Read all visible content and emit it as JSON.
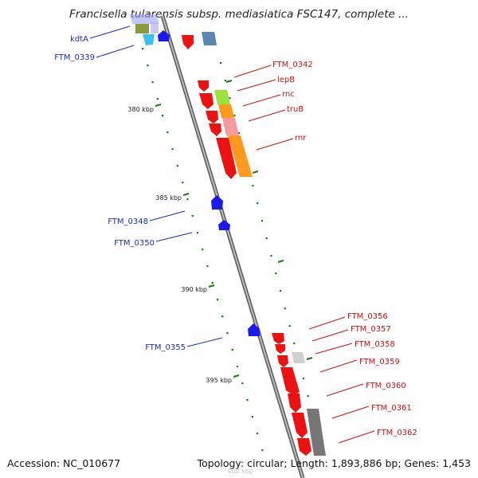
{
  "header": {
    "title": "Francisella tularensis subsp. mediasiatica FSC147, complete ..."
  },
  "footer": {
    "accession": "Accession: NC_010677",
    "topology": "Topology: circular; Length: 1,893,886 bp; Genes: 1,453"
  },
  "scale": {
    "ticks": [
      {
        "label": "380 kbp"
      },
      {
        "label": "385 kbp"
      },
      {
        "label": "390 kbp"
      },
      {
        "label": "395 kbp"
      },
      {
        "label": "400 kbp"
      }
    ]
  },
  "genes": {
    "reverse": [
      {
        "label": "kdtA"
      },
      {
        "label": "FTM_0339"
      },
      {
        "label": "FTM_0348"
      },
      {
        "label": "FTM_0350"
      },
      {
        "label": "FTM_0355"
      }
    ],
    "forward": [
      {
        "label": "FTM_0342"
      },
      {
        "label": "lepB"
      },
      {
        "label": "rnc"
      },
      {
        "label": "truB"
      },
      {
        "label": "rnr"
      },
      {
        "label": "FTM_0356"
      },
      {
        "label": "FTM_0357"
      },
      {
        "label": "FTM_0358"
      },
      {
        "label": "FTM_0359"
      },
      {
        "label": "FTM_0360"
      },
      {
        "label": "FTM_0361"
      },
      {
        "label": "FTM_0362"
      }
    ]
  },
  "colors": {
    "forward_gene": "#ee1111",
    "reverse_gene": "#1a1aee",
    "backbone": "#8a8a8a",
    "tick": "#1a7a1a",
    "fwd_label": "#cc1111",
    "rev_label": "#1a2bbf",
    "cog_green": "#9be33a",
    "cog_orange": "#ff9a1e",
    "cog_pink": "#f59aa0",
    "cog_cyan": "#36c4ee",
    "cog_olive": "#8a9a3a",
    "cog_steel": "#5a86b5",
    "cog_grey": "#777777",
    "cog_lightgrey": "#cfcfcf"
  }
}
